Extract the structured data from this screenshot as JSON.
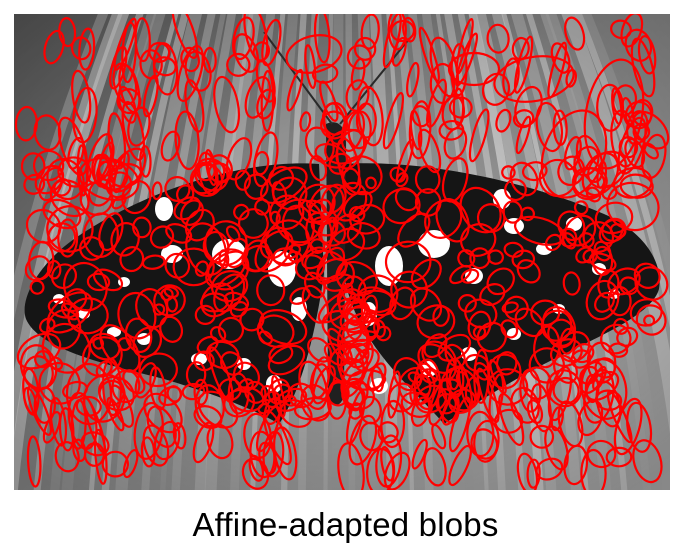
{
  "figure": {
    "subject": "butterfly",
    "overlay_color": "#ff0000",
    "background_colors": [
      "#6b6b6b",
      "#bdbdbd",
      "#e6e6e6"
    ],
    "wing_color": "#141414",
    "spot_color": "#ffffff"
  },
  "caption": "Affine-adapted blobs"
}
